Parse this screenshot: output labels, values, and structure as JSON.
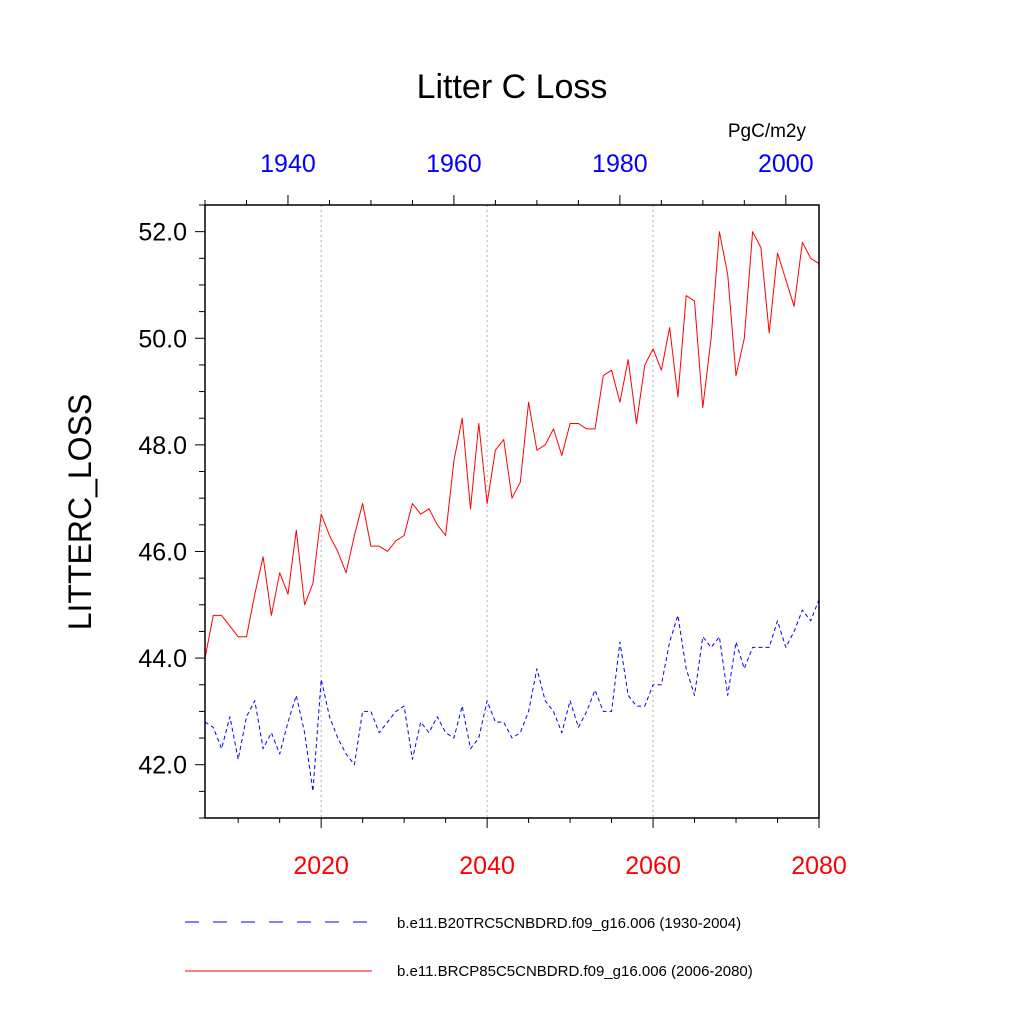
{
  "chart_data": {
    "type": "line",
    "title": "Litter C Loss",
    "units": "PgC/m2y",
    "ylabel": "LITTERC_LOSS",
    "ylim": [
      41.0,
      52.5
    ],
    "yticks": [
      42.0,
      44.0,
      46.0,
      48.0,
      50.0,
      52.0
    ],
    "ytick_labels": [
      "42.0",
      "44.0",
      "46.0",
      "48.0",
      "50.0",
      "52.0"
    ],
    "x_bottom": {
      "range": [
        2006,
        2080
      ],
      "ticks": [
        2020,
        2040,
        2060,
        2080
      ],
      "tick_labels": [
        "2020",
        "2040",
        "2060",
        "2080"
      ],
      "color": "#ff0000"
    },
    "x_top": {
      "range": [
        1930,
        2004
      ],
      "ticks": [
        1940,
        1960,
        1980,
        2000
      ],
      "tick_labels": [
        "1940",
        "1960",
        "1980",
        "2000"
      ],
      "color": "#0000ff"
    },
    "grid": "vertical dotted at bottom-axis major ticks",
    "legend": "bottom",
    "series": [
      {
        "name": "b.e11.B20TRC5CNBDRD.f09_g16.006 (1930-2004)",
        "color": "#0000ff",
        "dash": "dashed",
        "axis": "top",
        "x_start": 1930,
        "values": [
          42.8,
          42.7,
          42.3,
          42.9,
          42.1,
          42.9,
          43.2,
          42.3,
          42.6,
          42.2,
          42.8,
          43.3,
          42.6,
          41.5,
          43.6,
          42.9,
          42.5,
          42.2,
          42.0,
          43.0,
          43.0,
          42.6,
          42.8,
          43.0,
          43.1,
          42.1,
          42.8,
          42.6,
          42.9,
          42.6,
          42.5,
          43.1,
          42.3,
          42.5,
          43.2,
          42.8,
          42.8,
          42.5,
          42.6,
          43.0,
          43.8,
          43.2,
          43.0,
          42.6,
          43.2,
          42.7,
          43.0,
          43.4,
          43.0,
          43.0,
          44.3,
          43.3,
          43.1,
          43.1,
          43.5,
          43.5,
          44.3,
          44.8,
          43.8,
          43.3,
          44.4,
          44.2,
          44.4,
          43.3,
          44.3,
          43.8,
          44.2,
          44.2,
          44.2,
          44.7,
          44.2,
          44.5,
          44.9,
          44.7,
          45.1
        ]
      },
      {
        "name": "b.e11.BRCP85C5CNBDRD.f09_g16.006 (2006-2080)",
        "color": "#ff0000",
        "dash": "solid",
        "axis": "bottom",
        "x_start": 2006,
        "values": [
          44.0,
          44.8,
          44.8,
          44.6,
          44.4,
          44.4,
          45.2,
          45.9,
          44.8,
          45.6,
          45.2,
          46.4,
          45.0,
          45.4,
          46.7,
          46.3,
          46.0,
          45.6,
          46.3,
          46.9,
          46.1,
          46.1,
          46.0,
          46.2,
          46.3,
          46.9,
          46.7,
          46.8,
          46.5,
          46.3,
          47.7,
          48.5,
          46.8,
          48.4,
          46.9,
          47.9,
          48.1,
          47.0,
          47.3,
          48.8,
          47.9,
          48.0,
          48.3,
          47.8,
          48.4,
          48.4,
          48.3,
          48.3,
          49.3,
          49.4,
          48.8,
          49.6,
          48.4,
          49.5,
          49.8,
          49.4,
          50.2,
          48.9,
          50.8,
          50.7,
          48.7,
          50.0,
          52.0,
          51.2,
          49.3,
          50.0,
          52.0,
          51.7,
          50.1,
          51.6,
          51.1,
          50.6,
          51.8,
          51.5,
          51.4
        ]
      }
    ]
  }
}
